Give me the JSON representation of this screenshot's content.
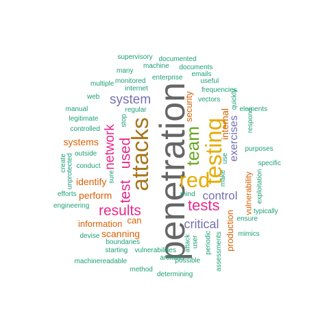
{
  "palette": {
    "gray": "#666666",
    "gold": "#a6761d",
    "yellow": "#e6ab02",
    "green": "#66a61e",
    "purple": "#7570b3",
    "pink": "#e7298a",
    "orange": "#d95f02",
    "teal": "#1b9e77"
  },
  "words": [
    {
      "text": "penetration",
      "color": "gray"
    },
    {
      "text": "attacks",
      "color": "gold"
    },
    {
      "text": "testing",
      "color": "yellow"
    },
    {
      "text": "red",
      "color": "yellow"
    },
    {
      "text": "team",
      "color": "green"
    },
    {
      "text": "tests",
      "color": "pink"
    },
    {
      "text": "results",
      "color": "pink"
    },
    {
      "text": "used",
      "color": "pink"
    },
    {
      "text": "test",
      "color": "pink"
    },
    {
      "text": "network",
      "color": "pink"
    },
    {
      "text": "system",
      "color": "purple"
    },
    {
      "text": "control",
      "color": "purple"
    },
    {
      "text": "critical",
      "color": "purple"
    },
    {
      "text": "exercises",
      "color": "purple"
    },
    {
      "text": "internal",
      "color": "orange"
    },
    {
      "text": "security",
      "color": "orange"
    },
    {
      "text": "systems",
      "color": "orange"
    },
    {
      "text": "identify",
      "color": "orange"
    },
    {
      "text": "perform",
      "color": "orange"
    },
    {
      "text": "information",
      "color": "orange"
    },
    {
      "text": "can",
      "color": "orange"
    },
    {
      "text": "scanning",
      "color": "orange"
    },
    {
      "text": "production",
      "color": "orange"
    },
    {
      "text": "vulnerability",
      "color": "orange"
    },
    {
      "text": "supervisory",
      "color": "teal"
    },
    {
      "text": "documented",
      "color": "teal"
    },
    {
      "text": "many",
      "color": "teal"
    },
    {
      "text": "machine",
      "color": "teal"
    },
    {
      "text": "documents",
      "color": "teal"
    },
    {
      "text": "enterprise",
      "color": "teal"
    },
    {
      "text": "emails",
      "color": "teal"
    },
    {
      "text": "multiple",
      "color": "teal"
    },
    {
      "text": "monitored",
      "color": "teal"
    },
    {
      "text": "useful",
      "color": "teal"
    },
    {
      "text": "web",
      "color": "teal"
    },
    {
      "text": "internet",
      "color": "teal"
    },
    {
      "text": "frequencies",
      "color": "teal"
    },
    {
      "text": "vectors",
      "color": "teal"
    },
    {
      "text": "quickly",
      "color": "teal"
    },
    {
      "text": "elements",
      "color": "teal"
    },
    {
      "text": "manual",
      "color": "teal"
    },
    {
      "text": "regular",
      "color": "teal"
    },
    {
      "text": "respond",
      "color": "teal"
    },
    {
      "text": "legitimate",
      "color": "teal"
    },
    {
      "text": "stop",
      "color": "teal"
    },
    {
      "text": "controlled",
      "color": "teal"
    },
    {
      "text": "purposes",
      "color": "teal"
    },
    {
      "text": "outside",
      "color": "teal"
    },
    {
      "text": "use",
      "color": "teal"
    },
    {
      "text": "specific",
      "color": "teal"
    },
    {
      "text": "create",
      "color": "teal"
    },
    {
      "text": "conduct",
      "color": "teal"
    },
    {
      "text": "unprotected",
      "color": "teal"
    },
    {
      "text": "make",
      "color": "teal"
    },
    {
      "text": "sure",
      "color": "teal"
    },
    {
      "text": "exploitation",
      "color": "teal"
    },
    {
      "text": "efforts",
      "color": "teal"
    },
    {
      "text": "mind",
      "color": "teal"
    },
    {
      "text": "typically",
      "color": "teal"
    },
    {
      "text": "engineering",
      "color": "teal"
    },
    {
      "text": "ensure",
      "color": "teal"
    },
    {
      "text": "devise",
      "color": "teal"
    },
    {
      "text": "mimics",
      "color": "teal"
    },
    {
      "text": "boundaries",
      "color": "teal"
    },
    {
      "text": "periodic",
      "color": "teal"
    },
    {
      "text": "attack",
      "color": "teal"
    },
    {
      "text": "user",
      "color": "teal"
    },
    {
      "text": "starting",
      "color": "teal"
    },
    {
      "text": "vulnerabilities",
      "color": "teal"
    },
    {
      "text": "artifacts",
      "color": "teal"
    },
    {
      "text": "possible",
      "color": "teal"
    },
    {
      "text": "assessments",
      "color": "teal"
    },
    {
      "text": "machinereadable",
      "color": "teal"
    },
    {
      "text": "method",
      "color": "teal"
    },
    {
      "text": "determining",
      "color": "teal"
    }
  ]
}
